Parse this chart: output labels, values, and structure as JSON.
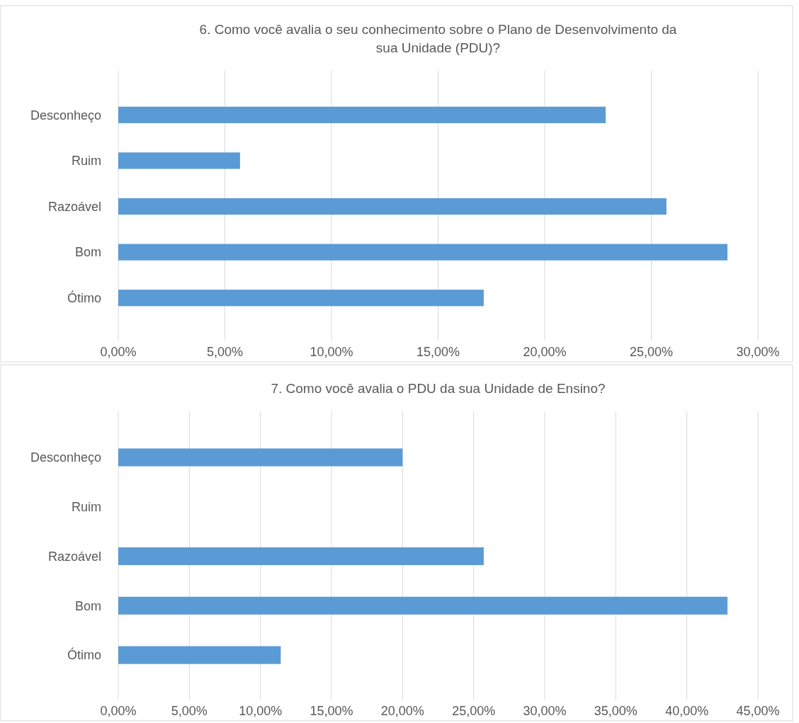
{
  "chart_data": [
    {
      "type": "bar",
      "orientation": "horizontal",
      "title": "6. Como você avalia o seu conhecimento sobre o Plano de Desenvolvimento da sua Unidade (PDU)?",
      "categories": [
        "Desconheço",
        "Ruim",
        "Razoável",
        "Bom",
        "Ótimo"
      ],
      "values": [
        22.86,
        5.71,
        25.71,
        28.57,
        17.14
      ],
      "color": "#5b9bd5",
      "xlim": [
        0,
        30
      ],
      "xticks": [
        {
          "value": 0,
          "label": "0,00%"
        },
        {
          "value": 5,
          "label": "5,00%"
        },
        {
          "value": 10,
          "label": "10,00%"
        },
        {
          "value": 15,
          "label": "15,00%"
        },
        {
          "value": 20,
          "label": "20,00%"
        },
        {
          "value": 25,
          "label": "25,00%"
        },
        {
          "value": 30,
          "label": "30,00%"
        }
      ],
      "grid": "x"
    },
    {
      "type": "bar",
      "orientation": "horizontal",
      "title": "7. Como você avalia o PDU da sua Unidade de Ensino?",
      "categories": [
        "Desconheço",
        "Ruim",
        "Razoável",
        "Bom",
        "Ótimo"
      ],
      "values": [
        20.0,
        0,
        25.71,
        42.86,
        11.43
      ],
      "color": "#5b9bd5",
      "xlim": [
        0,
        45
      ],
      "xticks": [
        {
          "value": 0,
          "label": "0,00%"
        },
        {
          "value": 5,
          "label": "5,00%"
        },
        {
          "value": 10,
          "label": "10,00%"
        },
        {
          "value": 15,
          "label": "15,00%"
        },
        {
          "value": 20,
          "label": "20,00%"
        },
        {
          "value": 25,
          "label": "25,00%"
        },
        {
          "value": 30,
          "label": "30,00%"
        },
        {
          "value": 35,
          "label": "35,00%"
        },
        {
          "value": 40,
          "label": "40,00%"
        },
        {
          "value": 45,
          "label": "45,00%"
        }
      ],
      "grid": "x"
    }
  ]
}
